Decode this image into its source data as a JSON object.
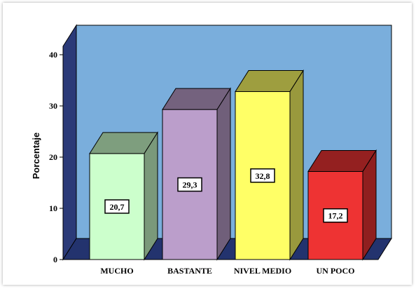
{
  "chart_data": {
    "type": "bar",
    "style": "3d",
    "categories": [
      "MUCHO",
      "BASTANTE",
      "NIVEL MEDIO",
      "UN POCO"
    ],
    "values": [
      20.7,
      29.3,
      32.8,
      17.2
    ],
    "data_labels": [
      "20,7",
      "29,3",
      "32,8",
      "17,2"
    ],
    "title": "",
    "xlabel": "",
    "ylabel": "Porcentaje",
    "ylim": [
      0,
      40
    ],
    "yticks": [
      0,
      10,
      20,
      30,
      40
    ],
    "grid": false,
    "legend": "none",
    "colors": {
      "background_wall": "#7aaedc",
      "side_wall": "#2b3a78",
      "floor": "#23336e",
      "bars": [
        "#ccffcc",
        "#bb9ecb",
        "#ffff66",
        "#ee3333"
      ]
    }
  }
}
